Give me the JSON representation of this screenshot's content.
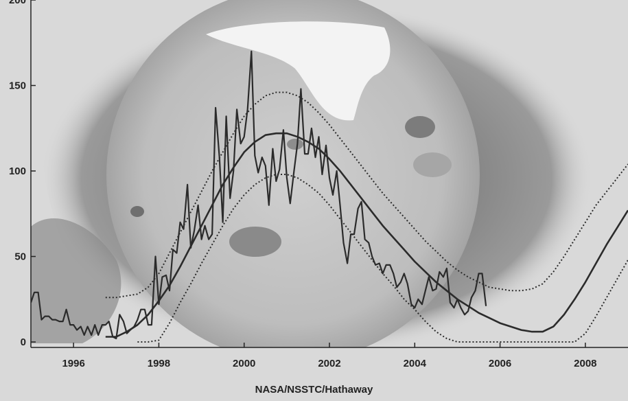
{
  "credit": "NASA/NSSTC/Hathaway",
  "colors": {
    "background": "#d9d9d9",
    "corona": "#8f8f8f",
    "sun_disk": "#c4c4c4",
    "bright_region": "#f2f2f2",
    "series_line": "#2b2b2b"
  },
  "chart_data": {
    "type": "line",
    "title": "",
    "xlabel": "",
    "ylabel": "",
    "xlim": [
      1995.0,
      2009.0
    ],
    "ylim": [
      0,
      200
    ],
    "x_ticks": [
      1996,
      1998,
      2000,
      2002,
      2004,
      2006,
      2008
    ],
    "x_tick_labels": [
      "1996",
      "1998",
      "2000",
      "2002",
      "2004",
      "2006",
      "2008"
    ],
    "y_ticks": [
      0,
      50,
      100,
      150,
      200
    ],
    "y_tick_labels": [
      "0",
      "50",
      "100",
      "150",
      "200"
    ],
    "grid": false,
    "legend": "none",
    "series": [
      {
        "style": "solid-thin",
        "x": [
          1995.0,
          1995.08,
          1995.17,
          1995.25,
          1995.33,
          1995.42,
          1995.5,
          1995.58,
          1995.67,
          1995.75,
          1995.83,
          1995.92,
          1996.0,
          1996.08,
          1996.17,
          1996.25,
          1996.33,
          1996.42,
          1996.5,
          1996.58,
          1996.67,
          1996.75,
          1996.83,
          1996.92,
          1997.0,
          1997.08,
          1997.17,
          1997.25,
          1997.33,
          1997.42,
          1997.5,
          1997.58,
          1997.67,
          1997.75,
          1997.83,
          1997.92,
          1998.0,
          1998.08,
          1998.17,
          1998.25,
          1998.33,
          1998.42,
          1998.5,
          1998.58,
          1998.67,
          1998.75,
          1998.83,
          1998.92,
          1999.0,
          1999.08,
          1999.17,
          1999.25,
          1999.33,
          1999.42,
          1999.5,
          1999.58,
          1999.67,
          1999.75,
          1999.83,
          1999.92,
          2000.0,
          2000.08,
          2000.17,
          2000.25,
          2000.33,
          2000.42,
          2000.5,
          2000.58,
          2000.67,
          2000.75,
          2000.83,
          2000.92,
          2001.0,
          2001.08,
          2001.17,
          2001.25,
          2001.33,
          2001.42,
          2001.5,
          2001.58,
          2001.67,
          2001.75,
          2001.83,
          2001.92,
          2002.0,
          2002.08,
          2002.17,
          2002.25,
          2002.33,
          2002.42,
          2002.5,
          2002.58,
          2002.67,
          2002.75,
          2002.83,
          2002.92,
          2003.0,
          2003.08,
          2003.17,
          2003.25,
          2003.33,
          2003.42,
          2003.5,
          2003.58,
          2003.67,
          2003.75,
          2003.83,
          2003.92,
          2004.0,
          2004.08,
          2004.17,
          2004.25,
          2004.33,
          2004.42,
          2004.5,
          2004.58,
          2004.67,
          2004.75,
          2004.83,
          2004.92,
          2005.0,
          2005.08,
          2005.17,
          2005.25,
          2005.33,
          2005.42,
          2005.5,
          2005.58,
          2005.67
        ],
        "values": [
          23,
          29,
          29,
          13,
          15,
          15,
          13,
          13,
          12,
          12,
          19,
          10,
          10,
          7,
          9,
          4,
          9,
          4,
          10,
          4,
          10,
          10,
          12,
          3,
          2,
          16,
          12,
          5,
          7,
          9,
          13,
          19,
          19,
          10,
          10,
          50,
          22,
          38,
          39,
          30,
          54,
          52,
          70,
          66,
          92,
          55,
          65,
          80,
          60,
          68,
          60,
          63,
          137,
          108,
          70,
          132,
          84,
          100,
          136,
          116,
          120,
          136,
          170,
          109,
          99,
          108,
          103,
          80,
          113,
          94,
          101,
          124,
          96,
          81,
          100,
          116,
          148,
          110,
          110,
          125,
          108,
          120,
          98,
          115,
          96,
          86,
          100,
          80,
          58,
          46,
          63,
          63,
          78,
          82,
          60,
          58,
          50,
          45,
          46,
          40,
          45,
          45,
          40,
          32,
          35,
          40,
          34,
          22,
          20,
          25,
          22,
          30,
          38,
          30,
          31,
          41,
          38,
          43,
          23,
          20,
          25,
          20,
          16,
          18,
          26,
          30,
          40,
          40,
          21
        ]
      },
      {
        "style": "solid-thick",
        "x": [
          1996.75,
          1997.0,
          1997.25,
          1997.5,
          1997.75,
          1998.0,
          1998.25,
          1998.5,
          1998.75,
          1999.0,
          1999.25,
          1999.5,
          1999.75,
          2000.0,
          2000.25,
          2000.5,
          2000.75,
          2001.0,
          2001.25,
          2001.5,
          2001.75,
          2002.0,
          2002.25,
          2002.5,
          2002.75,
          2003.0,
          2003.25,
          2003.5,
          2003.75,
          2004.0,
          2004.25,
          2004.5,
          2004.75,
          2005.0,
          2005.25,
          2005.5,
          2005.75,
          2006.0,
          2006.25,
          2006.5,
          2006.75,
          2007.0,
          2007.25,
          2007.5,
          2007.75,
          2008.0,
          2008.25,
          2008.5,
          2008.75,
          2009.0
        ],
        "values": [
          3,
          3,
          6,
          10,
          16,
          24,
          33,
          44,
          56,
          68,
          80,
          92,
          102,
          111,
          117,
          121,
          122,
          122,
          120,
          117,
          113,
          107,
          100,
          92,
          84,
          76,
          68,
          61,
          54,
          47,
          41,
          35,
          30,
          25,
          21,
          17,
          14,
          11,
          9,
          7,
          6,
          6,
          9,
          16,
          25,
          35,
          46,
          57,
          67,
          77
        ]
      },
      {
        "style": "dotted-upper",
        "x": [
          1996.75,
          1997.0,
          1997.25,
          1997.5,
          1997.75,
          1998.0,
          1998.25,
          1998.5,
          1998.75,
          1999.0,
          1999.25,
          1999.5,
          1999.75,
          2000.0,
          2000.25,
          2000.5,
          2000.75,
          2001.0,
          2001.25,
          2001.5,
          2001.75,
          2002.0,
          2002.25,
          2002.5,
          2002.75,
          2003.0,
          2003.25,
          2003.5,
          2003.75,
          2004.0,
          2004.25,
          2004.5,
          2004.75,
          2005.0,
          2005.25,
          2005.5,
          2005.75,
          2006.0,
          2006.25,
          2006.5,
          2006.75,
          2007.0,
          2007.25,
          2007.5,
          2007.75,
          2008.0,
          2008.25,
          2008.5,
          2008.75,
          2009.0
        ],
        "values": [
          26,
          26,
          27,
          28,
          32,
          40,
          52,
          64,
          76,
          88,
          100,
          111,
          122,
          132,
          139,
          144,
          146,
          146,
          144,
          140,
          134,
          127,
          119,
          111,
          103,
          95,
          87,
          80,
          73,
          66,
          59,
          53,
          47,
          42,
          38,
          35,
          32,
          31,
          30,
          30,
          31,
          34,
          41,
          50,
          60,
          70,
          80,
          88,
          96,
          104
        ]
      },
      {
        "style": "dotted-lower",
        "x": [
          1997.5,
          1997.75,
          1998.0,
          1998.25,
          1998.5,
          1998.75,
          1999.0,
          1999.25,
          1999.5,
          1999.75,
          2000.0,
          2000.25,
          2000.5,
          2000.75,
          2001.0,
          2001.25,
          2001.5,
          2001.75,
          2002.0,
          2002.25,
          2002.5,
          2002.75,
          2003.0,
          2003.25,
          2003.5,
          2003.75,
          2004.0,
          2004.25,
          2004.5,
          2004.75,
          2005.0,
          2005.25,
          2005.5,
          2005.75,
          2006.0,
          2006.5,
          2007.0,
          2007.5,
          2007.75,
          2008.0,
          2008.25,
          2008.5,
          2008.75,
          2009.0
        ],
        "values": [
          0,
          0,
          1,
          11,
          23,
          34,
          46,
          57,
          68,
          78,
          86,
          92,
          96,
          98,
          98,
          96,
          92,
          87,
          80,
          72,
          64,
          56,
          48,
          40,
          33,
          25,
          19,
          12,
          6,
          2,
          0,
          0,
          0,
          0,
          0,
          0,
          0,
          0,
          0,
          5,
          15,
          26,
          37,
          48
        ]
      }
    ]
  }
}
